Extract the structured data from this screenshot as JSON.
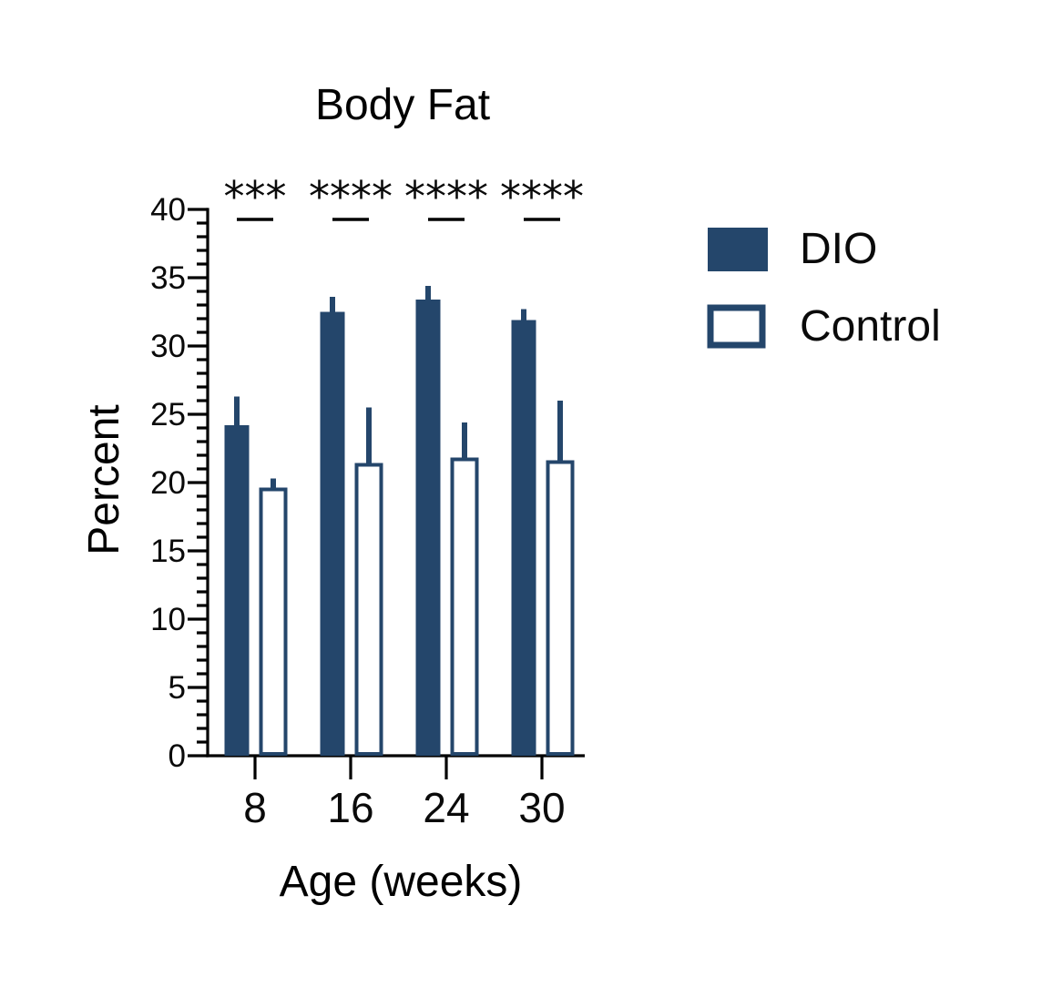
{
  "chart_data": {
    "type": "bar",
    "title": "Body Fat",
    "xlabel": "Age (weeks)",
    "ylabel": "Percent",
    "categories": [
      "8",
      "16",
      "24",
      "30"
    ],
    "series": [
      {
        "name": "DIO",
        "style": "filled",
        "values": [
          24.2,
          32.5,
          33.4,
          31.9
        ],
        "errors_up": [
          2.1,
          1.1,
          1.0,
          0.8
        ]
      },
      {
        "name": "Control",
        "style": "outlined",
        "values": [
          19.5,
          21.3,
          21.7,
          21.5
        ],
        "errors_up": [
          0.8,
          4.2,
          2.7,
          4.5
        ]
      }
    ],
    "significance_labels": [
      "***",
      "****",
      "****",
      "****"
    ],
    "ylim": [
      0,
      40
    ],
    "y_major_step": 5,
    "y_minor_step": 1,
    "error_bars": "upper_only",
    "grid": false,
    "legend_position": "right"
  },
  "colors": {
    "series_fill": "#24466B",
    "axis": "#000000",
    "text": "#0A0A0A",
    "background": "#FFFFFF"
  }
}
